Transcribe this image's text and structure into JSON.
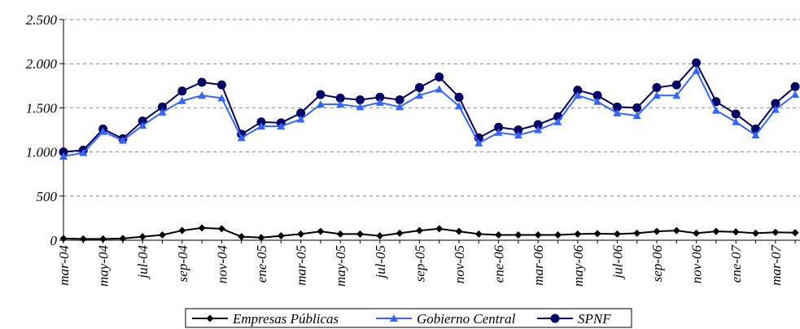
{
  "chart_data": {
    "type": "line",
    "categories": [
      "mar-04",
      null,
      "may-04",
      null,
      "jul-04",
      null,
      "sep-04",
      null,
      "nov-04",
      null,
      "ene-05",
      null,
      "mar-05",
      null,
      "may-05",
      null,
      "jul-05",
      null,
      "sep-05",
      null,
      "nov-05",
      null,
      "ene-06",
      null,
      "mar-06",
      null,
      "may-06",
      null,
      "jul-06",
      null,
      "sep-06",
      null,
      "nov-06",
      null,
      "ene-07",
      null,
      "mar-07",
      null
    ],
    "series": [
      {
        "name": "Empresas Públicas",
        "color": "#000000",
        "marker": "diamond",
        "values": [
          20,
          15,
          15,
          20,
          40,
          60,
          110,
          140,
          130,
          40,
          30,
          50,
          70,
          100,
          70,
          70,
          50,
          80,
          110,
          130,
          100,
          70,
          60,
          60,
          60,
          60,
          70,
          75,
          70,
          80,
          100,
          110,
          80,
          100,
          95,
          80,
          90,
          85
        ]
      },
      {
        "name": "Gobierno Central",
        "color": "#3366ff",
        "marker": "triangle",
        "values": [
          950,
          990,
          1230,
          1130,
          1300,
          1450,
          1580,
          1640,
          1610,
          1160,
          1290,
          1290,
          1370,
          1540,
          1540,
          1510,
          1560,
          1510,
          1640,
          1710,
          1520,
          1100,
          1220,
          1190,
          1250,
          1340,
          1640,
          1570,
          1440,
          1410,
          1640,
          1640,
          1920,
          1470,
          1340,
          1190,
          1480,
          1650
        ]
      },
      {
        "name": "SPNF",
        "color": "#000066",
        "marker": "circle",
        "values": [
          1000,
          1020,
          1260,
          1150,
          1350,
          1510,
          1690,
          1790,
          1760,
          1200,
          1340,
          1330,
          1440,
          1650,
          1610,
          1590,
          1620,
          1590,
          1730,
          1850,
          1620,
          1160,
          1280,
          1250,
          1310,
          1400,
          1700,
          1640,
          1510,
          1500,
          1730,
          1760,
          2010,
          1570,
          1430,
          1260,
          1550,
          1740
        ]
      }
    ],
    "ylim": [
      0,
      2500
    ],
    "yticks": [
      0,
      500,
      {
        "value": 1000,
        "label": "1.000"
      },
      {
        "value": 1500,
        "label": "1.500"
      },
      {
        "value": 2000,
        "label": "2.000"
      },
      {
        "value": 2500,
        "label": "2.500"
      }
    ],
    "grid": true,
    "legend": "bottom"
  }
}
